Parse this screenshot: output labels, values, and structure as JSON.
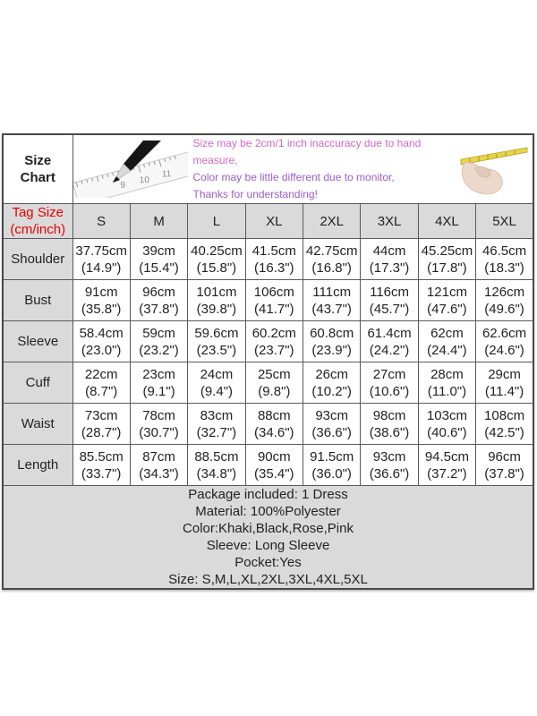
{
  "title": {
    "line1": "Size",
    "line2": "Chart"
  },
  "disclaimer": {
    "lines": [
      {
        "text": "Size may be 2cm/1 inch inaccuracy due to hand measure,",
        "color": "#d468c6"
      },
      {
        "text": "Color may be little different due to monitor,",
        "color": "#9c5ec9"
      },
      {
        "text": "Thanks for understanding!",
        "color": "#9c5ec9"
      }
    ]
  },
  "images": {
    "pencil_ruler": "pencil-tip-on-ruler-photo",
    "hand_tape": "hand-holding-yellow-measuring-tape-photo",
    "ruler_numbers": [
      "9",
      "10",
      "11"
    ]
  },
  "table": {
    "corner_label": {
      "line1": "Tag Size",
      "line2": "(cm/inch)"
    },
    "sizes": [
      "S",
      "M",
      "L",
      "XL",
      "2XL",
      "3XL",
      "4XL",
      "5XL"
    ],
    "rows": [
      {
        "label": "Shoulder",
        "cm": [
          "37.75cm",
          "39cm",
          "40.25cm",
          "41.5cm",
          "42.75cm",
          "44cm",
          "45.25cm",
          "46.5cm"
        ],
        "inch": [
          "(14.9\")",
          "(15.4\")",
          "(15.8\")",
          "(16.3\")",
          "(16.8\")",
          "(17.3\")",
          "(17.8\")",
          "(18.3\")"
        ]
      },
      {
        "label": "Bust",
        "cm": [
          "91cm",
          "96cm",
          "101cm",
          "106cm",
          "111cm",
          "116cm",
          "121cm",
          "126cm"
        ],
        "inch": [
          "(35.8\")",
          "(37.8\")",
          "(39.8\")",
          "(41.7\")",
          "(43.7\")",
          "(45.7\")",
          "(47.6\")",
          "(49.6\")"
        ]
      },
      {
        "label": "Sleeve",
        "cm": [
          "58.4cm",
          "59cm",
          "59.6cm",
          "60.2cm",
          "60.8cm",
          "61.4cm",
          "62cm",
          "62.6cm"
        ],
        "inch": [
          "(23.0\")",
          "(23.2\")",
          "(23.5\")",
          "(23.7\")",
          "(23.9\")",
          "(24.2\")",
          "(24.4\")",
          "(24.6\")"
        ]
      },
      {
        "label": "Cuff",
        "cm": [
          "22cm",
          "23cm",
          "24cm",
          "25cm",
          "26cm",
          "27cm",
          "28cm",
          "29cm"
        ],
        "inch": [
          "(8.7\")",
          "(9.1\")",
          "(9.4\")",
          "(9.8\")",
          "(10.2\")",
          "(10.6\")",
          "(11.0\")",
          "(11.4\")"
        ]
      },
      {
        "label": "Waist",
        "cm": [
          "73cm",
          "78cm",
          "83cm",
          "88cm",
          "93cm",
          "98cm",
          "103cm",
          "108cm"
        ],
        "inch": [
          "(28.7\")",
          "(30.7\")",
          "(32.7\")",
          "(34.6\")",
          "(36.6\")",
          "(38.6\")",
          "(40.6\")",
          "(42.5\")"
        ]
      },
      {
        "label": "Length",
        "cm": [
          "85.5cm",
          "87cm",
          "88.5cm",
          "90cm",
          "91.5cm",
          "93cm",
          "94.5cm",
          "96cm"
        ],
        "inch": [
          "(33.7\")",
          "(34.3\")",
          "(34.8\")",
          "(35.4\")",
          "(36.0\")",
          "(36.6\")",
          "(37.2\")",
          "(37.8\")"
        ]
      }
    ]
  },
  "footer": {
    "lines": [
      "Package included: 1 Dress",
      "Material: 100%Polyester",
      "Color:Khaki,Black,Rose,Pink",
      "Sleeve: Long Sleeve",
      "Pocket:Yes",
      "Size: S,M,L,XL,2XL,3XL,4XL,5XL"
    ]
  },
  "colors": {
    "header_bg": "#dadada",
    "grid_border": "#5a5a5c",
    "tag_size_red": "#e80000",
    "disclaimer_pink": "#d468c6",
    "disclaimer_purple": "#9c5ec9",
    "tape_yellow": "#e8d44a"
  }
}
